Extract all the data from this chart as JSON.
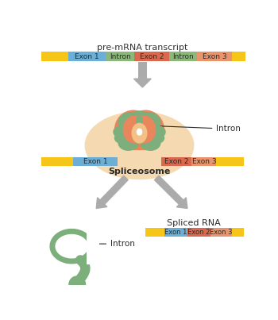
{
  "title": "pre-mRNA transcript",
  "c_yellow": "#F5C518",
  "c_blue": "#6BAED6",
  "c_green_seg": "#8BB87A",
  "c_red": "#D9694E",
  "c_salmon": "#E8956D",
  "c_green_splice": "#7DAF7D",
  "c_peach_inner": "#E8855A",
  "c_center_light": "#F5C086",
  "c_ellipse_bg": "#F5D9B0",
  "c_arrow": "#ABABAB",
  "spliceosome_label": "Spliceosome",
  "intron_label": "Intron",
  "spliced_rna_label": "Spliced RNA",
  "background": "#FFFFFF"
}
